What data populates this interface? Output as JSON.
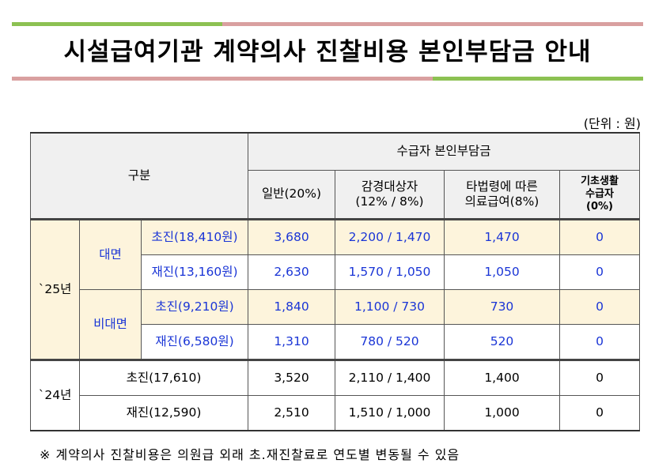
{
  "title": "시설급여기관 계약의사 진찰비용 본인부담금 안내",
  "unit": "(단위 : 원)",
  "colors": {
    "green": "#8cc152",
    "pink": "#d9a0a0",
    "highlight": "#fdf4dc",
    "header": "#f0f0f0",
    "blue": "#1a35d6"
  },
  "header": {
    "category": "구분",
    "group": "수급자 본인부담금",
    "cols": [
      "일반(20%)",
      "감경대상자\n(12% / 8%)",
      "타법령에 따른\n의료급여(8%)",
      "기초생활\n수급자\n(0%)"
    ]
  },
  "year25": {
    "label": "`25년",
    "face": {
      "label": "대면",
      "rows": [
        {
          "name": "초진(18,410원)",
          "v": [
            "3,680",
            "2,200 / 1,470",
            "1,470",
            "0"
          ]
        },
        {
          "name": "재진(13,160원)",
          "v": [
            "2,630",
            "1,570 / 1,050",
            "1,050",
            "0"
          ]
        }
      ]
    },
    "nonface": {
      "label": "비대면",
      "rows": [
        {
          "name": "초진(9,210원)",
          "v": [
            "1,840",
            "1,100 / 730",
            "730",
            "0"
          ]
        },
        {
          "name": "재진(6,580원)",
          "v": [
            "1,310",
            "780 / 520",
            "520",
            "0"
          ]
        }
      ]
    }
  },
  "year24": {
    "label": "`24년",
    "rows": [
      {
        "name": "초진(17,610)",
        "v": [
          "3,520",
          "2,110 / 1,400",
          "1,400",
          "0"
        ]
      },
      {
        "name": "재진(12,590)",
        "v": [
          "2,510",
          "1,510 / 1,000",
          "1,000",
          "0"
        ]
      }
    ]
  },
  "footnote": "※ 계약의사 진찰비용은 의원급 외래 초.재진찰료로 연도별 변동될 수 있음"
}
